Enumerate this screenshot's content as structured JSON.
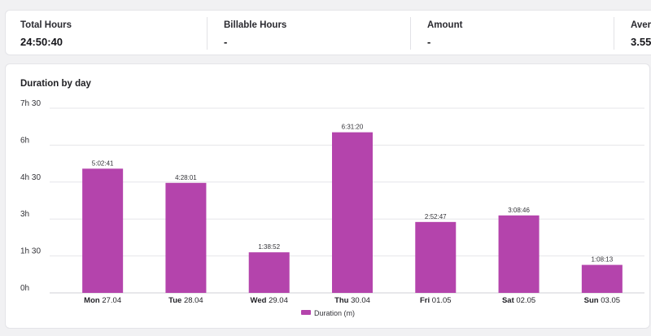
{
  "summary": {
    "items": [
      {
        "label": "Total Hours",
        "value": "24:50:40"
      },
      {
        "label": "Billable Hours",
        "value": "-"
      },
      {
        "label": "Amount",
        "value": "-"
      },
      {
        "label": "Avera",
        "value": "3.55"
      }
    ]
  },
  "chart": {
    "title": "Duration by day"
  },
  "colors": {
    "bar": "#b444ac",
    "grid": "#e6e6ea",
    "axis": "#cfcfd4"
  },
  "chart_data": {
    "type": "bar",
    "title": "Duration by day",
    "categories": [
      {
        "day": "Mon",
        "date": "27.04"
      },
      {
        "day": "Tue",
        "date": "28.04"
      },
      {
        "day": "Wed",
        "date": "29.04"
      },
      {
        "day": "Thu",
        "date": "30.04"
      },
      {
        "day": "Fri",
        "date": "01.05"
      },
      {
        "day": "Sat",
        "date": "02.05"
      },
      {
        "day": "Sun",
        "date": "03.05"
      }
    ],
    "series": [
      {
        "name": "Duration",
        "values": [
          302.68,
          268.02,
          98.87,
          391.33,
          172.78,
          188.77,
          68.22
        ],
        "labels": [
          "5:02:41",
          "4:28:01",
          "1:38:52",
          "6:31:20",
          "2:52:47",
          "3:08:46",
          "1:08:13"
        ]
      }
    ],
    "legend": {
      "label": "Duration",
      "unit": "(m)",
      "position": "bottom"
    },
    "yticks": [
      {
        "value": 0,
        "label": "0h"
      },
      {
        "value": 90,
        "label": "1h 30"
      },
      {
        "value": 180,
        "label": "3h"
      },
      {
        "value": 270,
        "label": "4h 30"
      },
      {
        "value": 360,
        "label": "6h"
      },
      {
        "value": 450,
        "label": "7h 30"
      }
    ],
    "ylim": [
      0,
      450
    ],
    "grid": true
  }
}
